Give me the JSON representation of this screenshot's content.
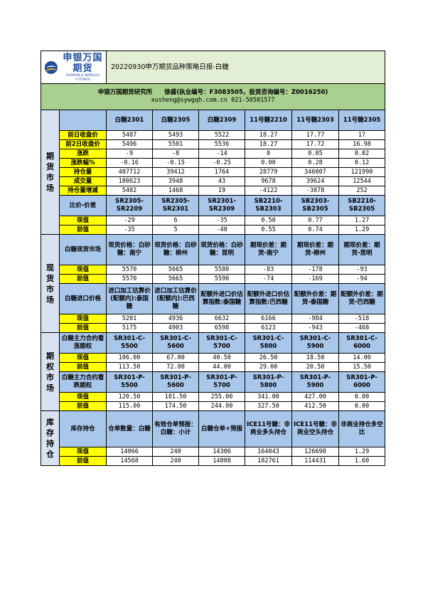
{
  "header": {
    "logo_cn": "申银万国期货",
    "logo_en": "SHENYIN & WANGUO FUTURES",
    "title": "20220930申万期货品种策略日报-白糖",
    "institute_line": "申银万国期货研究所　　徐盛(执业编号：F3083505，投资咨询编号：Z0016250)",
    "contact_line": "xusheng@sywgqh.com.cn 021-50581577"
  },
  "futures": {
    "section": "期货市场",
    "columns": [
      "白糖2301",
      "白糖2305",
      "白糖2309",
      "11号糖2210",
      "11号糖2303",
      "11号糖2305"
    ],
    "rows": [
      {
        "label": "前日收盘价",
        "values": [
          "5487",
          "5493",
          "5522",
          "18.27",
          "17.77",
          "17"
        ]
      },
      {
        "label": "前2日收盘价",
        "values": [
          "5496",
          "5501",
          "5536",
          "18.27",
          "17.72",
          "16.98"
        ]
      },
      {
        "label": "涨跌",
        "values": [
          "-9",
          "-8",
          "-14",
          "0",
          "0.05",
          "0.02"
        ]
      },
      {
        "label": "涨跌幅%",
        "values": [
          "-0.16",
          "-0.15",
          "-0.25",
          "0.00",
          "0.28",
          "0.12"
        ]
      },
      {
        "label": "持仓量",
        "values": [
          "407712",
          "39412",
          "1764",
          "28779",
          "346007",
          "121990"
        ]
      },
      {
        "label": "成交量",
        "values": [
          "180623",
          "3948",
          "43",
          "9678",
          "39624",
          "12544"
        ]
      },
      {
        "label": "持仓量增减",
        "values": [
          "5402",
          "1468",
          "19",
          "-4122",
          "-3078",
          "252"
        ]
      }
    ],
    "spread_header": "比价-价差",
    "spread_columns": [
      "SR2305-SR2209",
      "SR2305-SR2301",
      "SR2301-SR2309",
      "SB2210-SB2303",
      "SB2303-SB2305",
      "SB2210-SB2305"
    ],
    "spread_rows": [
      {
        "label": "现值",
        "values": [
          "-29",
          "6",
          "-35",
          "0.50",
          "0.77",
          "1.27"
        ]
      },
      {
        "label": "前值",
        "values": [
          "-35",
          "5",
          "-40",
          "0.55",
          "0.74",
          "1.29"
        ]
      }
    ]
  },
  "spot": {
    "section": "现货市场",
    "header1": "白糖现货市场",
    "columns1": [
      "现货价格：白砂糖：南宁",
      "现货价格：白砂糖：柳州",
      "现货价格：白砂糖：昆明",
      "期现价差：期货-南宁",
      "期现价差：期货-柳州",
      "期现价差：期货-昆明"
    ],
    "rows1": [
      {
        "label": "现值",
        "values": [
          "5570",
          "5665",
          "5580",
          "-83",
          "-178",
          "-93"
        ]
      },
      {
        "label": "前值",
        "values": [
          "5570",
          "5665",
          "5590",
          "-74",
          "-169",
          "-94"
        ]
      }
    ],
    "header2": "白糖进口价格",
    "columns2": [
      "进口加工估算价(配额内):泰国糖",
      "进口加工估算价(配额内):巴西糖",
      "配额外进口价估算指数:泰国糖",
      "配额外进口价估算指数:巴西糖",
      "配额外价差：期货-泰国糖",
      "配额外价差：期货-巴西糖"
    ],
    "rows2": [
      {
        "label": "现值",
        "values": [
          "5201",
          "4936",
          "6632",
          "6166",
          "-984",
          "-518"
        ]
      },
      {
        "label": "前值",
        "values": [
          "5175",
          "4903",
          "6598",
          "6123",
          "-943",
          "-468"
        ]
      }
    ]
  },
  "options": {
    "section": "期权市场",
    "header1": "白糖主力合约看涨期权",
    "columns1": [
      "SR301-C-5500",
      "SR301-C-5600",
      "SR301-C-5700",
      "SR301-C-5800",
      "SR301-C-5900",
      "SR301-C-6000"
    ],
    "rows1": [
      {
        "label": "现值",
        "values": [
          "106.00",
          "67.00",
          "40.50",
          "26.50",
          "18.50",
          "14.00"
        ]
      },
      {
        "label": "前值",
        "values": [
          "113.50",
          "72.00",
          "44.00",
          "29.00",
          "20.50",
          "15.50"
        ]
      }
    ],
    "header2": "白糖主力合约看跌期权",
    "columns2": [
      "SR301-P-5500",
      "SR301-P-5600",
      "SR301-P-5700",
      "SR301-P-5800",
      "SR301-P-5900",
      "SR301-P-6000"
    ],
    "rows2": [
      {
        "label": "现值",
        "values": [
          "120.50",
          "181.50",
          "255.00",
          "341.00",
          "427.00",
          "0.00"
        ]
      },
      {
        "label": "前值",
        "values": [
          "115.00",
          "174.50",
          "244.00",
          "327.50",
          "412.50",
          "0.00"
        ]
      }
    ]
  },
  "inventory": {
    "section": "库存持仓",
    "header": "库存持仓",
    "columns": [
      "仓单数量：白糖",
      "有效仓单预报：白糖：小计",
      "白糖仓单+预报",
      "ICE11号糖：非商业多头持仓",
      "ICE11号糖：非商业空头持仓",
      "非商业持仓多空比"
    ],
    "rows": [
      {
        "label": "现值",
        "values": [
          "14066",
          "240",
          "14306",
          "164043",
          "126698",
          "1.29"
        ]
      },
      {
        "label": "前值",
        "values": [
          "14568",
          "240",
          "14808",
          "182761",
          "114431",
          "1.60"
        ]
      }
    ]
  }
}
